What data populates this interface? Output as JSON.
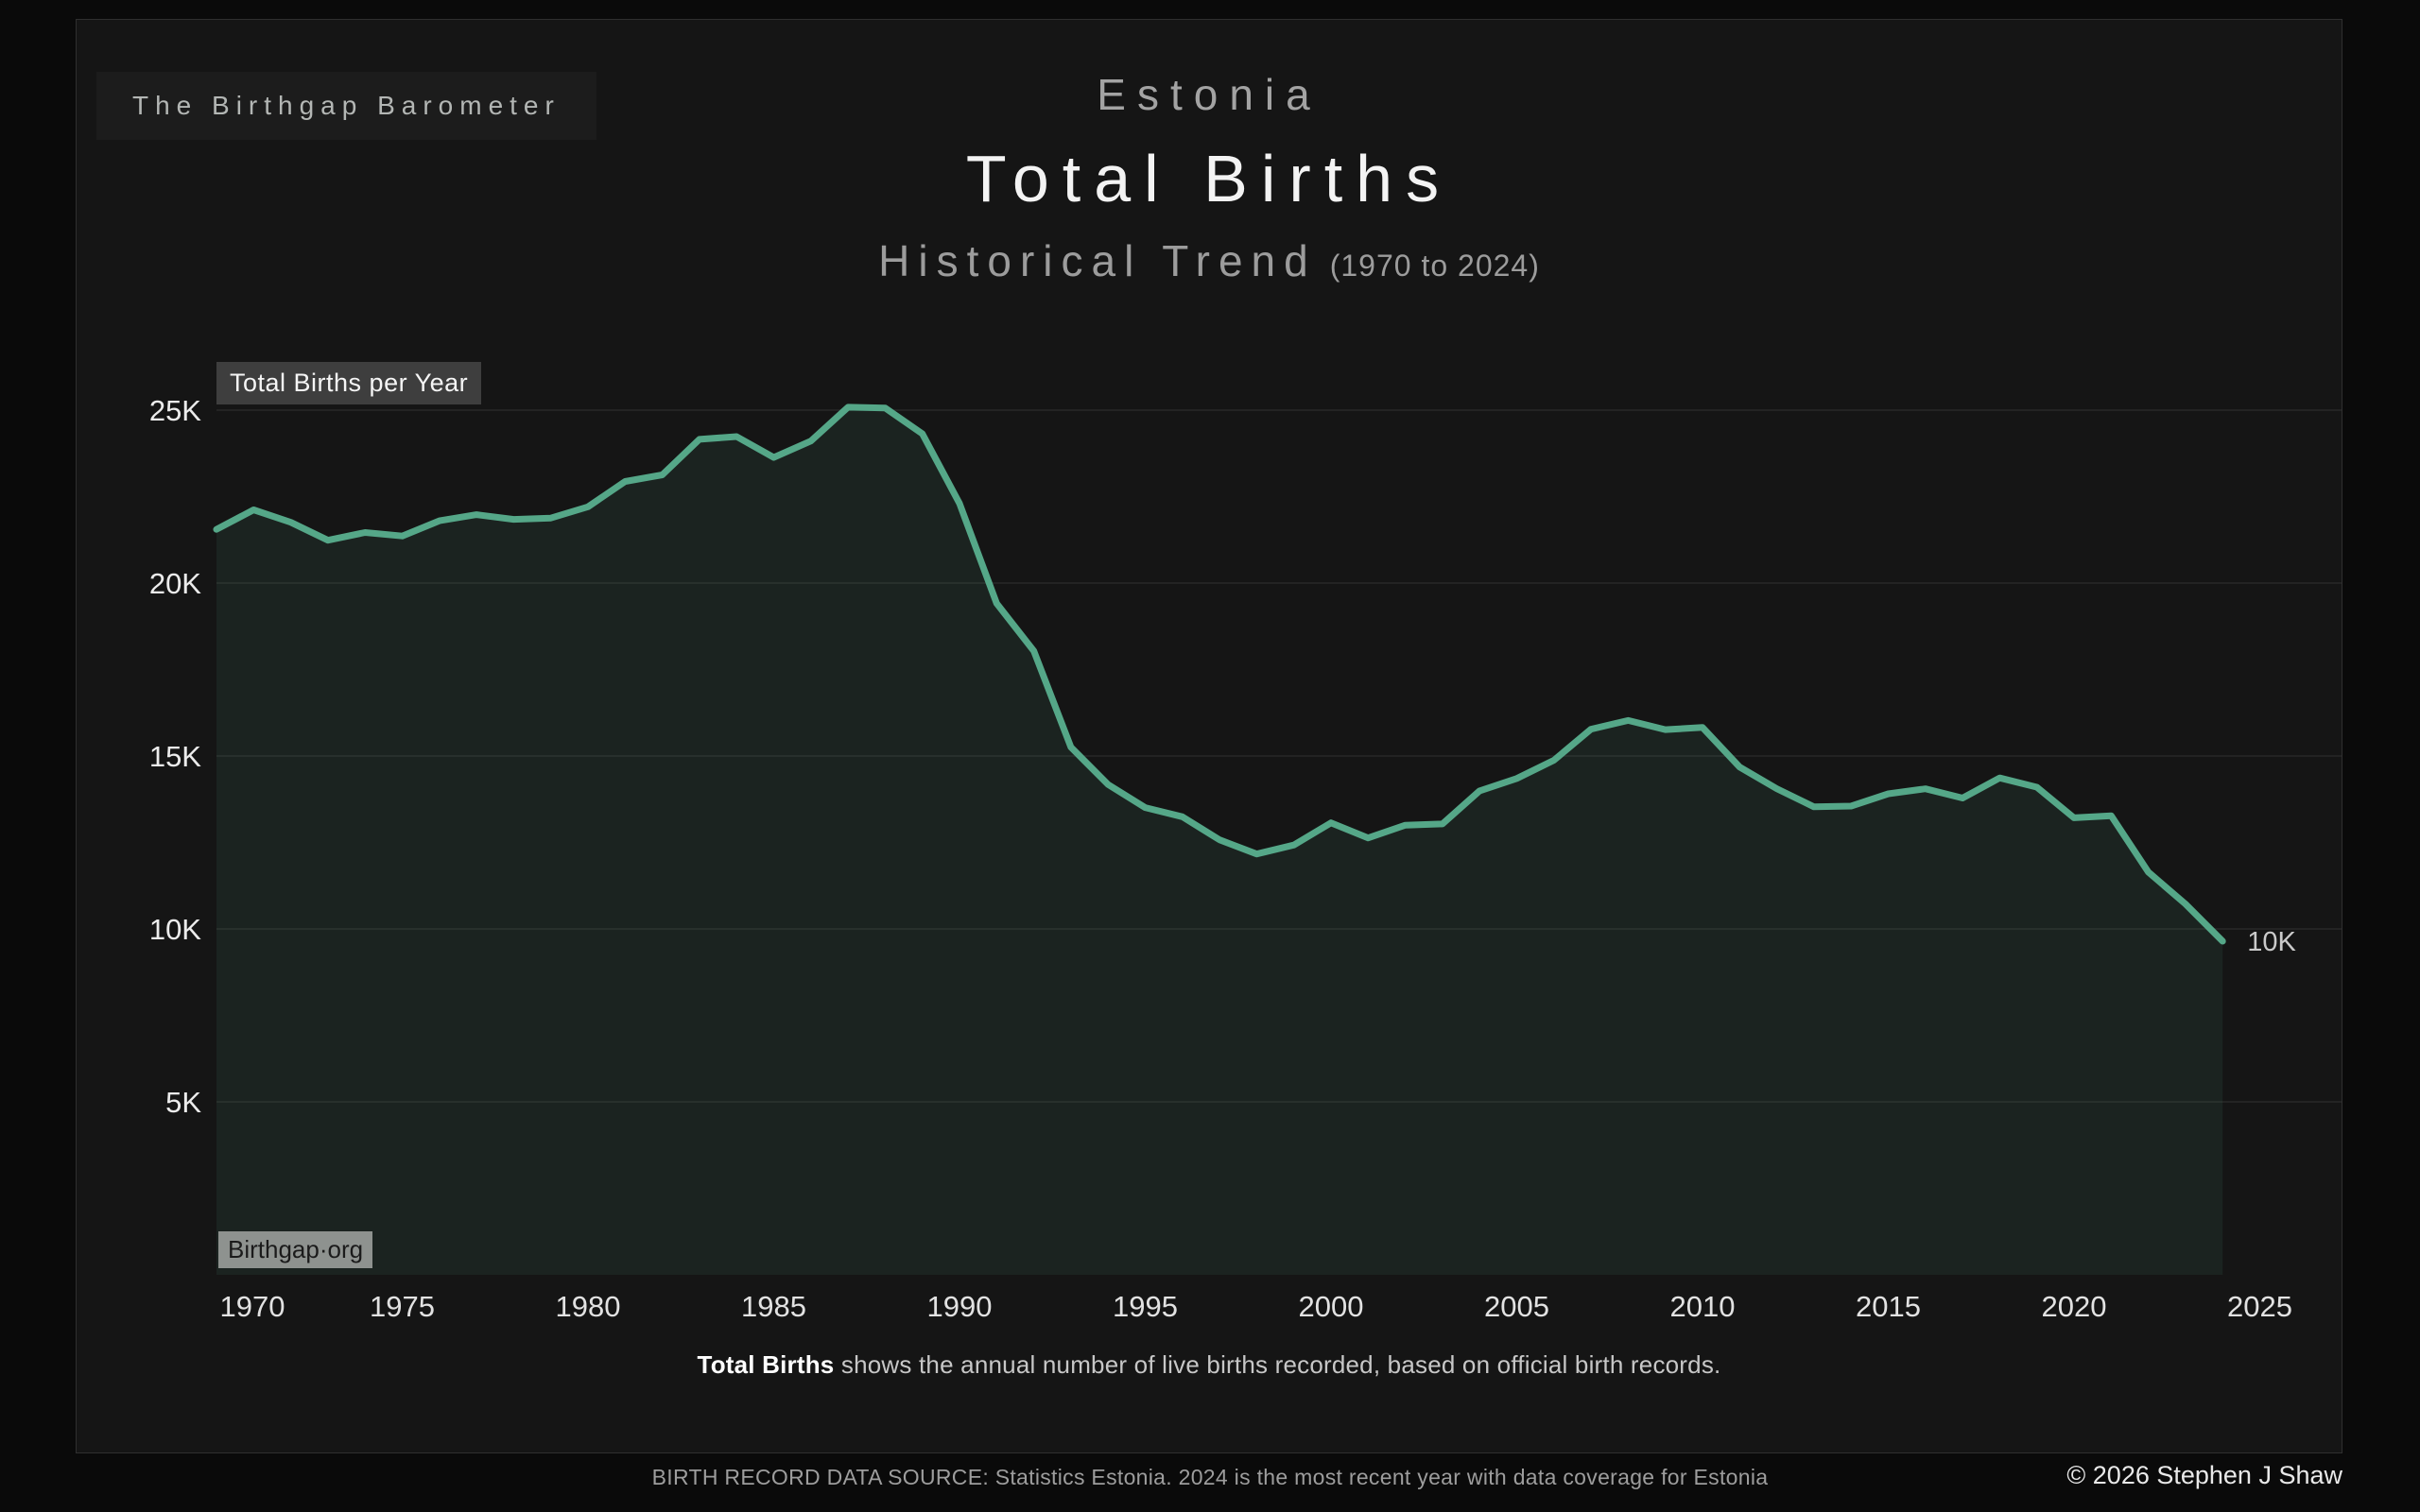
{
  "brand": {
    "label": "The Birthgap Barometer"
  },
  "header": {
    "country": "Estonia",
    "title": "Total Births",
    "subtitle": "Historical Trend",
    "subtitle_note": "(1970 to 2024)"
  },
  "legend": {
    "label": "Total Births per Year"
  },
  "watermark": {
    "label": "Birthgap·org"
  },
  "annotation": {
    "last_value_label": "10K"
  },
  "caption": {
    "lead": "Total Births",
    "rest": " shows the annual number of live births recorded, based on official birth records."
  },
  "footer": {
    "source": "BIRTH RECORD DATA SOURCE: Statistics Estonia. 2024 is the most recent year with data coverage for Estonia",
    "copyright": "© 2026 Stephen J Shaw"
  },
  "chart_data": {
    "type": "area",
    "title": "Estonia — Total Births — Historical Trend (1970 to 2024)",
    "xlabel": "",
    "ylabel": "",
    "x": [
      1970,
      1971,
      1972,
      1973,
      1974,
      1975,
      1976,
      1977,
      1978,
      1979,
      1980,
      1981,
      1982,
      1983,
      1984,
      1985,
      1986,
      1987,
      1988,
      1989,
      1990,
      1991,
      1992,
      1993,
      1994,
      1995,
      1996,
      1997,
      1998,
      1999,
      2000,
      2001,
      2002,
      2003,
      2004,
      2005,
      2006,
      2007,
      2008,
      2009,
      2010,
      2011,
      2012,
      2013,
      2014,
      2015,
      2016,
      2017,
      2018,
      2019,
      2020,
      2021,
      2022,
      2023,
      2024
    ],
    "series": [
      {
        "name": "Total Births per Year",
        "values": [
          21552,
          22118,
          21757,
          21239,
          21461,
          21360,
          21801,
          21977,
          21842,
          21879,
          22204,
          22937,
          23128,
          24155,
          24234,
          23630,
          24106,
          25086,
          25060,
          24318,
          22304,
          19413,
          18038,
          15253,
          14176,
          13509,
          13242,
          12577,
          12167,
          12425,
          13067,
          12632,
          13001,
          13036,
          13992,
          14350,
          14877,
          15775,
          16028,
          15763,
          15825,
          14679,
          14056,
          13531,
          13551,
          13907,
          14053,
          13784,
          14367,
          14099,
          13213,
          13272,
          11646,
          10721,
          9645
        ]
      }
    ],
    "x_ticks": [
      1970,
      1975,
      1980,
      1985,
      1990,
      1995,
      2000,
      2005,
      2010,
      2015,
      2020,
      2025
    ],
    "y_ticks": [
      {
        "value": 5000,
        "label": "5K"
      },
      {
        "value": 10000,
        "label": "10K"
      },
      {
        "value": 15000,
        "label": "15K"
      },
      {
        "value": 20000,
        "label": "20K"
      },
      {
        "value": 25000,
        "label": "25K"
      }
    ],
    "xlim": [
      1970,
      2027.2
    ],
    "ylim": [
      0,
      26300
    ],
    "grid": true,
    "legend_position": "top-left",
    "line_color": "#55a788",
    "fill_color": "rgba(85,167,136,0.10)",
    "grid_color": "#282828",
    "end_annotation": {
      "x": 2024,
      "y": 9645,
      "label": "10K"
    }
  }
}
